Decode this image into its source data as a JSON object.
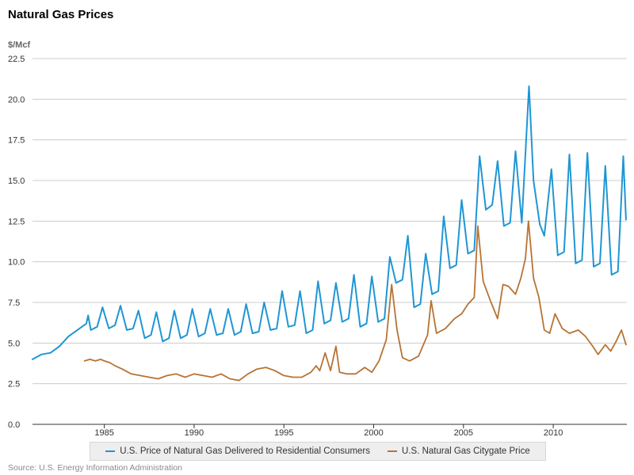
{
  "chart_data": {
    "type": "line",
    "title": "Natural Gas Prices",
    "ylabel": "$/Mcf",
    "xlabel": "",
    "xlim": [
      1981,
      2014.1
    ],
    "ylim": [
      0,
      22.5
    ],
    "y_ticks": [
      "0.0",
      "2.5",
      "5.0",
      "7.5",
      "10.0",
      "12.5",
      "15.0",
      "17.5",
      "20.0",
      "22.5"
    ],
    "x_ticks": [
      "1985",
      "1990",
      "1995",
      "2000",
      "2005",
      "2010"
    ],
    "grid": true,
    "legend_position": "bottom",
    "series": [
      {
        "name": "U.S. Price of Natural Gas Delivered to Residential Consumers",
        "color": "#1f96d3",
        "anchors": [
          [
            1981.0,
            4.0
          ],
          [
            1981.5,
            4.3
          ],
          [
            1982.0,
            4.4
          ],
          [
            1982.5,
            4.8
          ],
          [
            1983.0,
            5.4
          ],
          [
            1983.5,
            5.8
          ],
          [
            1984.0,
            6.2
          ],
          [
            1984.1,
            6.7
          ],
          [
            1984.25,
            5.8
          ],
          [
            1984.6,
            6.0
          ],
          [
            1984.9,
            7.2
          ],
          [
            1985.25,
            5.9
          ],
          [
            1985.6,
            6.1
          ],
          [
            1985.9,
            7.3
          ],
          [
            1986.25,
            5.8
          ],
          [
            1986.6,
            5.9
          ],
          [
            1986.9,
            7.0
          ],
          [
            1987.25,
            5.3
          ],
          [
            1987.6,
            5.5
          ],
          [
            1987.9,
            6.9
          ],
          [
            1988.25,
            5.1
          ],
          [
            1988.6,
            5.3
          ],
          [
            1988.9,
            7.0
          ],
          [
            1989.25,
            5.3
          ],
          [
            1989.6,
            5.5
          ],
          [
            1989.9,
            7.1
          ],
          [
            1990.25,
            5.4
          ],
          [
            1990.6,
            5.6
          ],
          [
            1990.9,
            7.1
          ],
          [
            1991.25,
            5.5
          ],
          [
            1991.6,
            5.6
          ],
          [
            1991.9,
            7.1
          ],
          [
            1992.25,
            5.5
          ],
          [
            1992.6,
            5.7
          ],
          [
            1992.9,
            7.4
          ],
          [
            1993.25,
            5.6
          ],
          [
            1993.6,
            5.7
          ],
          [
            1993.9,
            7.5
          ],
          [
            1994.25,
            5.8
          ],
          [
            1994.6,
            5.9
          ],
          [
            1994.9,
            8.2
          ],
          [
            1995.25,
            6.0
          ],
          [
            1995.6,
            6.1
          ],
          [
            1995.9,
            8.2
          ],
          [
            1996.25,
            5.6
          ],
          [
            1996.6,
            5.8
          ],
          [
            1996.9,
            8.8
          ],
          [
            1997.25,
            6.2
          ],
          [
            1997.6,
            6.4
          ],
          [
            1997.9,
            8.7
          ],
          [
            1998.25,
            6.3
          ],
          [
            1998.6,
            6.5
          ],
          [
            1998.9,
            9.2
          ],
          [
            1999.25,
            6.0
          ],
          [
            1999.6,
            6.2
          ],
          [
            1999.9,
            9.1
          ],
          [
            2000.25,
            6.3
          ],
          [
            2000.6,
            6.5
          ],
          [
            2000.9,
            10.3
          ],
          [
            2001.25,
            8.7
          ],
          [
            2001.6,
            8.9
          ],
          [
            2001.9,
            11.6
          ],
          [
            2002.25,
            7.2
          ],
          [
            2002.6,
            7.4
          ],
          [
            2002.9,
            10.5
          ],
          [
            2003.25,
            8.0
          ],
          [
            2003.6,
            8.2
          ],
          [
            2003.9,
            12.8
          ],
          [
            2004.25,
            9.6
          ],
          [
            2004.6,
            9.8
          ],
          [
            2004.9,
            13.8
          ],
          [
            2005.25,
            10.5
          ],
          [
            2005.6,
            10.7
          ],
          [
            2005.9,
            16.5
          ],
          [
            2006.25,
            13.2
          ],
          [
            2006.6,
            13.5
          ],
          [
            2006.9,
            16.2
          ],
          [
            2007.25,
            12.2
          ],
          [
            2007.6,
            12.4
          ],
          [
            2007.9,
            16.8
          ],
          [
            2008.25,
            12.4
          ],
          [
            2008.65,
            20.8
          ],
          [
            2008.9,
            15.0
          ],
          [
            2009.25,
            12.3
          ],
          [
            2009.5,
            11.6
          ],
          [
            2009.9,
            15.7
          ],
          [
            2010.25,
            10.4
          ],
          [
            2010.6,
            10.6
          ],
          [
            2010.9,
            16.6
          ],
          [
            2011.25,
            9.9
          ],
          [
            2011.6,
            10.1
          ],
          [
            2011.9,
            16.7
          ],
          [
            2012.25,
            9.7
          ],
          [
            2012.6,
            9.9
          ],
          [
            2012.9,
            15.9
          ],
          [
            2013.25,
            9.2
          ],
          [
            2013.6,
            9.4
          ],
          [
            2013.9,
            16.5
          ],
          [
            2014.05,
            12.6
          ]
        ]
      },
      {
        "name": "U.S. Natural Gas Citygate Price",
        "color": "#b87333",
        "anchors": [
          [
            1983.9,
            3.9
          ],
          [
            1984.2,
            4.0
          ],
          [
            1984.5,
            3.9
          ],
          [
            1984.8,
            4.0
          ],
          [
            1985.0,
            3.9
          ],
          [
            1985.3,
            3.8
          ],
          [
            1985.6,
            3.6
          ],
          [
            1986.0,
            3.4
          ],
          [
            1986.5,
            3.1
          ],
          [
            1987.0,
            3.0
          ],
          [
            1987.5,
            2.9
          ],
          [
            1988.0,
            2.8
          ],
          [
            1988.5,
            3.0
          ],
          [
            1989.0,
            3.1
          ],
          [
            1989.5,
            2.9
          ],
          [
            1990.0,
            3.1
          ],
          [
            1990.5,
            3.0
          ],
          [
            1991.0,
            2.9
          ],
          [
            1991.5,
            3.1
          ],
          [
            1992.0,
            2.8
          ],
          [
            1992.5,
            2.7
          ],
          [
            1993.0,
            3.1
          ],
          [
            1993.5,
            3.4
          ],
          [
            1994.0,
            3.5
          ],
          [
            1994.5,
            3.3
          ],
          [
            1995.0,
            3.0
          ],
          [
            1995.5,
            2.9
          ],
          [
            1996.0,
            2.9
          ],
          [
            1996.5,
            3.2
          ],
          [
            1996.8,
            3.6
          ],
          [
            1997.0,
            3.3
          ],
          [
            1997.3,
            4.4
          ],
          [
            1997.6,
            3.3
          ],
          [
            1997.9,
            4.8
          ],
          [
            1998.1,
            3.2
          ],
          [
            1998.5,
            3.1
          ],
          [
            1999.0,
            3.1
          ],
          [
            1999.5,
            3.5
          ],
          [
            1999.9,
            3.2
          ],
          [
            2000.3,
            3.9
          ],
          [
            2000.7,
            5.2
          ],
          [
            2001.0,
            8.6
          ],
          [
            2001.3,
            5.8
          ],
          [
            2001.6,
            4.1
          ],
          [
            2002.0,
            3.9
          ],
          [
            2002.5,
            4.2
          ],
          [
            2003.0,
            5.5
          ],
          [
            2003.2,
            7.6
          ],
          [
            2003.5,
            5.6
          ],
          [
            2004.0,
            5.9
          ],
          [
            2004.5,
            6.5
          ],
          [
            2004.9,
            6.8
          ],
          [
            2005.25,
            7.4
          ],
          [
            2005.6,
            7.8
          ],
          [
            2005.8,
            12.2
          ],
          [
            2006.1,
            8.8
          ],
          [
            2006.5,
            7.6
          ],
          [
            2006.9,
            6.5
          ],
          [
            2007.2,
            8.6
          ],
          [
            2007.5,
            8.5
          ],
          [
            2007.9,
            8.0
          ],
          [
            2008.2,
            9.0
          ],
          [
            2008.45,
            10.2
          ],
          [
            2008.62,
            12.5
          ],
          [
            2008.9,
            9.0
          ],
          [
            2009.2,
            7.8
          ],
          [
            2009.5,
            5.8
          ],
          [
            2009.8,
            5.6
          ],
          [
            2010.1,
            6.8
          ],
          [
            2010.5,
            5.9
          ],
          [
            2010.9,
            5.6
          ],
          [
            2011.4,
            5.8
          ],
          [
            2011.8,
            5.4
          ],
          [
            2012.2,
            4.8
          ],
          [
            2012.5,
            4.3
          ],
          [
            2012.9,
            4.9
          ],
          [
            2013.2,
            4.5
          ],
          [
            2013.5,
            5.1
          ],
          [
            2013.8,
            5.8
          ],
          [
            2014.05,
            4.9
          ]
        ]
      }
    ]
  },
  "source": "Source: U.S. Energy Information Administration"
}
